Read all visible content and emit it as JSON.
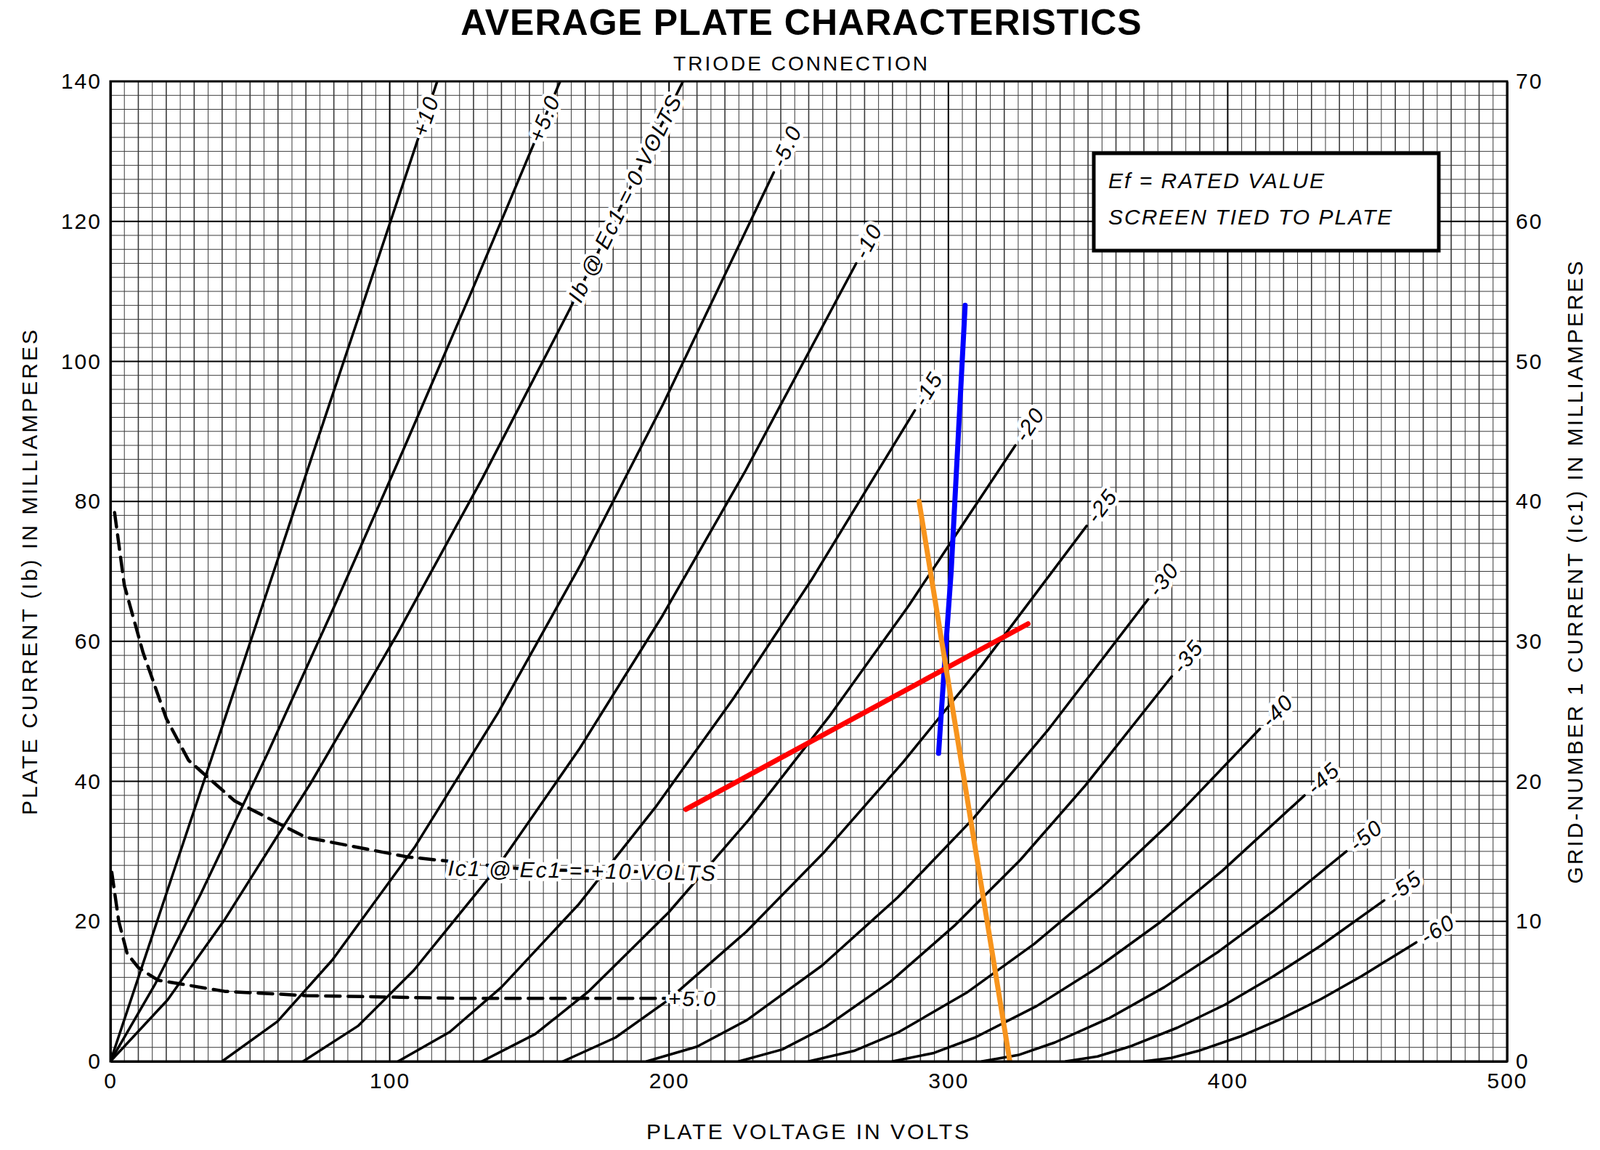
{
  "chart_data": {
    "type": "line",
    "title": "AVERAGE PLATE CHARACTERISTICS",
    "subtitle": "TRIODE CONNECTION",
    "x_label": "PLATE VOLTAGE IN VOLTS",
    "y_label": "PLATE CURRENT (Ib) IN MILLIAMPERES",
    "y2_label": "GRID-NUMBER 1 CURRENT (Ic1) IN MILLIAMPERES",
    "annotations": [
      "Ef = RATED VALUE",
      "SCREEN TIED TO PLATE"
    ],
    "xlim": [
      0,
      500
    ],
    "xticks": [
      0,
      100,
      200,
      300,
      400,
      500
    ],
    "ylim": [
      0,
      140
    ],
    "yticks": [
      0,
      20,
      40,
      60,
      80,
      100,
      120,
      140
    ],
    "y2lim": [
      0,
      70
    ],
    "y2ticks": [
      0,
      10,
      20,
      30,
      40,
      50,
      60,
      70
    ],
    "grid": true,
    "series": [
      {
        "name": "+10",
        "color": "#000000",
        "x": [
          0,
          11.7,
          23.4,
          41,
          58.5,
          76,
          93.6,
          117
        ],
        "values": [
          0,
          14,
          28,
          49,
          70,
          91,
          112,
          140
        ]
      },
      {
        "name": "+5.0",
        "color": "#000000",
        "x": [
          0,
          16.1,
          32.2,
          56.4,
          80.5,
          104.7,
          128.8,
          161
        ],
        "values": [
          0,
          11.1,
          23.8,
          44.1,
          65.3,
          87.2,
          109.5,
          140
        ]
      },
      {
        "name": "Ib @ Ec1 = 0 VOLTS",
        "color": "#000000",
        "x": [
          0,
          20.5,
          41,
          71.8,
          102.5,
          133.3,
          164,
          205
        ],
        "values": [
          0,
          8.8,
          20.3,
          39.8,
          60.9,
          83.4,
          107.1,
          140
        ]
      },
      {
        "name": "-5.0",
        "color": "#000000",
        "x": [
          40,
          59.8,
          79.5,
          109.1,
          138.8,
          168.4,
          198,
          237.5
        ],
        "values": [
          0,
          5.7,
          14.5,
          30.7,
          49.8,
          71,
          94,
          127
        ]
      },
      {
        "name": "-10",
        "color": "#000000",
        "x": [
          69,
          88.8,
          108.6,
          138.3,
          168,
          197.7,
          227.4,
          267
        ],
        "values": [
          0,
          5.1,
          13,
          27.6,
          44.7,
          63.7,
          84.4,
          114
        ]
      },
      {
        "name": "-15",
        "color": "#000000",
        "x": [
          103,
          121.5,
          140,
          167.8,
          195.5,
          223.3,
          251,
          288
        ],
        "values": [
          0,
          4.2,
          10.6,
          22.5,
          36.5,
          52,
          68.8,
          93
        ]
      },
      {
        "name": "-20",
        "color": "#000000",
        "x": [
          133,
          152.1,
          171.2,
          199.9,
          228.5,
          257.2,
          285.8,
          324
        ],
        "values": [
          0,
          3.9,
          10,
          21.3,
          34.5,
          49.2,
          65.1,
          88
        ]
      },
      {
        "name": "-25",
        "color": "#000000",
        "x": [
          162,
          180.8,
          199.5,
          227.6,
          255.8,
          283.9,
          312,
          349.5
        ],
        "values": [
          0,
          3.4,
          8.7,
          18.5,
          30,
          42.8,
          56.6,
          76.5
        ]
      },
      {
        "name": "-30",
        "color": "#000000",
        "x": [
          192,
          210,
          227.9,
          254.8,
          281.8,
          308.7,
          335.6,
          371.5
        ],
        "values": [
          0,
          2.1,
          5.9,
          13.7,
          23.4,
          34.6,
          47.3,
          66
        ]
      },
      {
        "name": "-35",
        "color": "#000000",
        "x": [
          225,
          240.5,
          256,
          279.3,
          302.5,
          325.8,
          349,
          380
        ],
        "values": [
          0,
          1.7,
          4.9,
          11.4,
          19.5,
          28.8,
          39.4,
          55
        ]
      },
      {
        "name": "-40",
        "color": "#000000",
        "x": [
          250,
          266.2,
          282.3,
          306.5,
          330.8,
          355,
          379.2,
          411.5
        ],
        "values": [
          0,
          1.5,
          4.2,
          9.8,
          16.8,
          24.9,
          34,
          47.5
        ]
      },
      {
        "name": "-45",
        "color": "#000000",
        "x": [
          280,
          294.8,
          309.5,
          331.6,
          353.8,
          375.9,
          398,
          427.5
        ],
        "values": [
          0,
          1.2,
          3.4,
          7.9,
          13.5,
          19.9,
          27.2,
          38
        ]
      },
      {
        "name": "-50",
        "color": "#000000",
        "x": [
          312,
          325,
          338.1,
          357.7,
          377.3,
          396.8,
          416.4,
          442.5
        ],
        "values": [
          0,
          0.9,
          2.7,
          6.2,
          10.6,
          15.7,
          21.5,
          30
        ]
      },
      {
        "name": "-55",
        "color": "#000000",
        "x": [
          342,
          353.4,
          364.8,
          381.9,
          399,
          416.1,
          433.2,
          456
        ],
        "values": [
          0,
          0.7,
          2.1,
          4.8,
          8.1,
          12.1,
          16.5,
          23
        ]
      },
      {
        "name": "-60",
        "color": "#000000",
        "x": [
          370,
          379.8,
          389.5,
          404.1,
          418.8,
          433.4,
          448,
          467.5
        ],
        "values": [
          0,
          0.5,
          1.5,
          3.5,
          6,
          8.9,
          12.2,
          17
        ]
      },
      {
        "name": "Ic1 @ Ec1 = +10 VOLTS",
        "color": "#000000",
        "axis": "y2",
        "line_style": "dashed",
        "x": [
          1.5,
          5,
          11.7,
          20,
          28,
          44.5,
          70,
          106.5,
          150,
          201.5
        ],
        "values": [
          39.2,
          34,
          29.2,
          24.5,
          21.5,
          18.6,
          16,
          14.6,
          13.7,
          13.5
        ]
      },
      {
        "name": "+5.0",
        "color": "#000000",
        "axis": "y2",
        "line_style": "dashed",
        "x": [
          0.5,
          3,
          6,
          10,
          17,
          41,
          70,
          125,
          201.5
        ],
        "values": [
          13.5,
          10,
          7.7,
          6.7,
          5.8,
          5,
          4.7,
          4.5,
          4.5
        ]
      },
      {
        "color": "#0000ff",
        "x": [
          296.5,
          298.5,
          301,
          306
        ],
        "values": [
          44,
          56,
          70,
          108
        ]
      },
      {
        "color": "#ff0000",
        "x": [
          206,
          328.5
        ],
        "values": [
          36,
          62.5
        ]
      },
      {
        "color": "#f7941d",
        "x": [
          289.5,
          322
        ],
        "values": [
          80,
          0
        ]
      }
    ]
  }
}
